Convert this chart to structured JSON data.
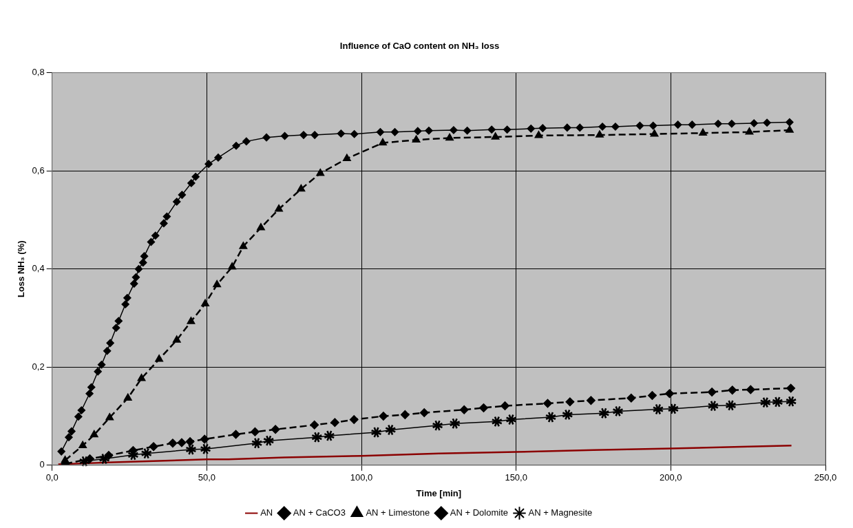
{
  "chart_data": {
    "type": "line",
    "title": "Influence of CaO content on NH₃ loss",
    "xlabel": "Time [min]",
    "ylabel": "Loss NH₃ (%)",
    "xlim": [
      0,
      250
    ],
    "xticks": [
      {
        "value": 0,
        "label": "0,0"
      },
      {
        "value": 50,
        "label": "50,0"
      },
      {
        "value": 100,
        "label": "100,0"
      },
      {
        "value": 150,
        "label": "150,0"
      },
      {
        "value": 200,
        "label": "200,0"
      },
      {
        "value": 250,
        "label": "250,0"
      }
    ],
    "ylim": [
      0,
      0.8
    ],
    "yticks": [
      {
        "value": 0,
        "label": "0"
      },
      {
        "value": 0.2,
        "label": "0,2"
      },
      {
        "value": 0.4,
        "label": "0,4"
      },
      {
        "value": 0.6,
        "label": "0,6"
      },
      {
        "value": 0.8,
        "label": "0,8"
      }
    ],
    "grid": true,
    "legend": "bottom",
    "series": [
      {
        "name": "AN",
        "color": "#8b0000",
        "marker": "none",
        "line_style": "solid",
        "x": [
          2,
          20,
          50,
          57,
          75,
          100,
          125,
          150,
          175,
          200,
          225,
          239
        ],
        "values": [
          0.002,
          0.006,
          0.012,
          0.012,
          0.016,
          0.019,
          0.024,
          0.027,
          0.031,
          0.034,
          0.038,
          0.04
        ]
      },
      {
        "name": "AN + CaCO3",
        "color": "#000000",
        "marker": "diamond",
        "line_style": "solid",
        "x": [
          3.0,
          5.4,
          6.3,
          8.5,
          9.5,
          12.1,
          12.7,
          14.8,
          16.0,
          17.8,
          18.8,
          20.7,
          21.5,
          23.7,
          24.3,
          26.5,
          27.1,
          28.0,
          29.4,
          29.8,
          32.0,
          33.4,
          36.1,
          37.1,
          40.3,
          42.0,
          45.0,
          46.4,
          50.6,
          53.7,
          59.5,
          62.8,
          69.3,
          75.2,
          81.3,
          84.9,
          93.4,
          97.7,
          106.1,
          110.8,
          118.2,
          121.8,
          129.8,
          134.2,
          142.1,
          147.1,
          154.8,
          158.6,
          166.5,
          170.6,
          177.9,
          182.1,
          190.0,
          194.3,
          202.3,
          206.9,
          215.3,
          219.7,
          226.9,
          231.1,
          238.4
        ],
        "values": [
          0.028,
          0.057,
          0.069,
          0.099,
          0.112,
          0.146,
          0.159,
          0.191,
          0.205,
          0.233,
          0.249,
          0.28,
          0.294,
          0.328,
          0.341,
          0.37,
          0.383,
          0.4,
          0.413,
          0.426,
          0.455,
          0.468,
          0.493,
          0.507,
          0.537,
          0.551,
          0.575,
          0.588,
          0.614,
          0.627,
          0.651,
          0.66,
          0.668,
          0.671,
          0.673,
          0.673,
          0.676,
          0.675,
          0.679,
          0.679,
          0.681,
          0.682,
          0.683,
          0.682,
          0.684,
          0.684,
          0.686,
          0.687,
          0.688,
          0.688,
          0.69,
          0.69,
          0.692,
          0.692,
          0.694,
          0.694,
          0.696,
          0.696,
          0.697,
          0.698,
          0.699
        ]
      },
      {
        "name": "AN + Limestone",
        "color": "#000000",
        "marker": "triangle",
        "line_style": "dashed",
        "x": [
          4.2,
          9.9,
          13.6,
          18.6,
          24.5,
          28.9,
          34.6,
          40.3,
          44.9,
          49.5,
          53.3,
          58.2,
          61.8,
          67.5,
          73.3,
          80.5,
          86.7,
          95.3,
          106.9,
          117.7,
          128.5,
          143.3,
          157.3,
          177.0,
          194.7,
          210.4,
          225.4,
          238.4
        ],
        "values": [
          0.01,
          0.04,
          0.062,
          0.097,
          0.137,
          0.177,
          0.216,
          0.255,
          0.293,
          0.329,
          0.368,
          0.404,
          0.446,
          0.484,
          0.522,
          0.563,
          0.595,
          0.625,
          0.657,
          0.663,
          0.667,
          0.669,
          0.672,
          0.673,
          0.675,
          0.677,
          0.679,
          0.683
        ]
      },
      {
        "name": "AN + Dolomite",
        "color": "#000000",
        "marker": "diamond",
        "line_style": "dashed",
        "x": [
          4.3,
          12.2,
          18.3,
          26.2,
          32.8,
          39.0,
          41.9,
          44.6,
          49.3,
          59.4,
          65.6,
          72.2,
          84.8,
          91.4,
          97.6,
          107.1,
          114.1,
          120.3,
          133.2,
          139.5,
          146.4,
          160.2,
          167.4,
          174.2,
          187.2,
          194.0,
          199.6,
          213.3,
          219.9,
          225.8,
          238.8
        ],
        "values": [
          0.003,
          0.013,
          0.02,
          0.03,
          0.038,
          0.045,
          0.046,
          0.048,
          0.053,
          0.063,
          0.068,
          0.073,
          0.082,
          0.087,
          0.093,
          0.1,
          0.103,
          0.107,
          0.113,
          0.117,
          0.121,
          0.126,
          0.129,
          0.132,
          0.137,
          0.142,
          0.146,
          0.149,
          0.153,
          0.154,
          0.157
        ]
      },
      {
        "name": "AN + Magnesite",
        "color": "#000000",
        "marker": "star",
        "line_style": "solid",
        "x": [
          10.5,
          16.9,
          26.2,
          30.5,
          44.9,
          49.6,
          66.2,
          70.0,
          85.6,
          89.6,
          104.8,
          109.4,
          124.6,
          130.2,
          143.8,
          148.4,
          161.2,
          166.6,
          178.4,
          182.9,
          195.9,
          200.8,
          213.7,
          219.4,
          230.6,
          234.5,
          238.9
        ],
        "values": [
          0.008,
          0.013,
          0.021,
          0.024,
          0.032,
          0.033,
          0.045,
          0.05,
          0.057,
          0.06,
          0.067,
          0.072,
          0.081,
          0.085,
          0.089,
          0.093,
          0.098,
          0.103,
          0.106,
          0.11,
          0.114,
          0.115,
          0.121,
          0.122,
          0.128,
          0.129,
          0.13
        ]
      }
    ]
  }
}
